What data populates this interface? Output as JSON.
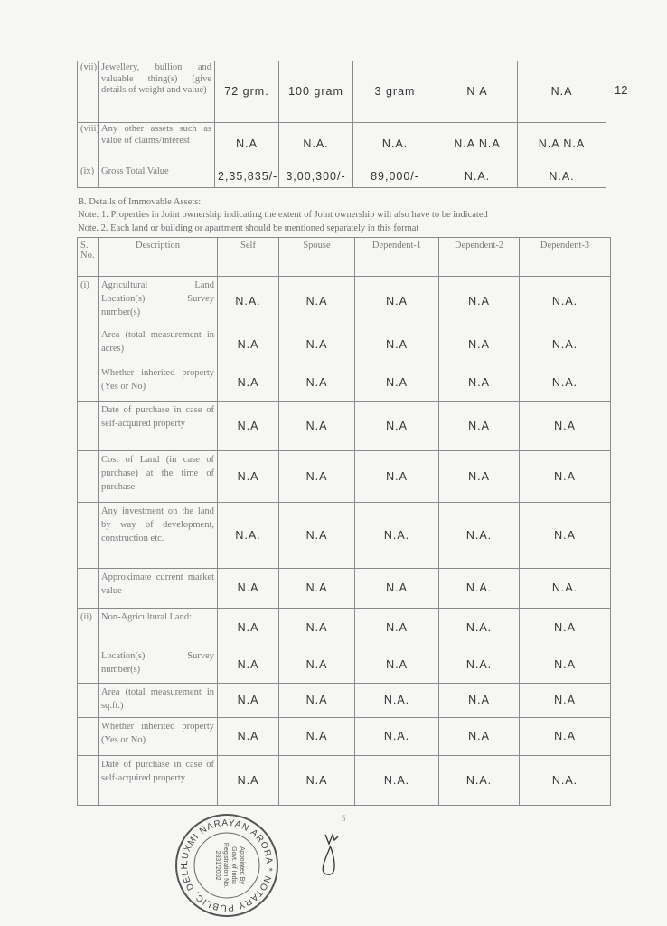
{
  "movable_continued": {
    "rows": [
      {
        "sno": "(vii)",
        "desc": "Jewellery, bullion and valuable thing(s) (give details of weight and value)",
        "values": [
          "72 grm.",
          "100 gram",
          "3 gram",
          "N A",
          "N.A"
        ]
      },
      {
        "sno": "(viii)",
        "desc": "Any other assets such as value of claims/interest",
        "values": [
          "N.A",
          "N.A.",
          "N.A.",
          "N.A  N.A",
          "N.A  N.A"
        ]
      },
      {
        "sno": "(ix)",
        "desc": "Gross Total Value",
        "values": [
          "2,35,835/-",
          "3,00,300/-",
          "89,000/-",
          "N.A.",
          "N.A."
        ]
      }
    ]
  },
  "margin_note": "12",
  "section_b": {
    "title": "B. Details of Immovable Assets:",
    "note1": "Note: 1.   Properties in Joint ownership indicating the extent of Joint ownership will also have to be indicated",
    "note2": "Note. 2.   Each land or building or apartment should be mentioned separately in this format",
    "headers": [
      "S. No.",
      "Description",
      "Self",
      "Spouse",
      "Dependent-1",
      "Dependent-2",
      "Dependent-3"
    ],
    "rows": [
      {
        "sno": "(i)",
        "desc": "Agricultural Land Location(s) Survey number(s)",
        "values": [
          "N.A.",
          "N.A",
          "N.A",
          "N.A",
          "N.A."
        ]
      },
      {
        "sno": "",
        "desc": "Area (total measurement in acres)",
        "values": [
          "N.A",
          "N.A",
          "N.A",
          "N.A",
          "N.A."
        ]
      },
      {
        "sno": "",
        "desc": "Whether inherited property (Yes or No)",
        "values": [
          "N.A",
          "N.A",
          "N.A",
          "N.A",
          "N.A."
        ]
      },
      {
        "sno": "",
        "desc": "Date of purchase in case of self-acquired property",
        "values": [
          "N.A",
          "N.A",
          "N.A",
          "N.A",
          "N.A"
        ]
      },
      {
        "sno": "",
        "desc": "Cost of Land (in case of purchase) at the time of purchase",
        "values": [
          "N.A",
          "N.A",
          "N.A",
          "N.A",
          "N.A"
        ]
      },
      {
        "sno": "",
        "desc": "Any investment on the land by way of development, construction etc.",
        "values": [
          "N.A.",
          "N.A",
          "N.A.",
          "N.A.",
          "N.A"
        ]
      },
      {
        "sno": "",
        "desc": "Approximate current market value",
        "values": [
          "N.A",
          "N.A",
          "N.A",
          "N.A.",
          "N.A."
        ]
      },
      {
        "sno": "(ii)",
        "desc": "Non-Agricultural Land:",
        "values": [
          "N.A",
          "N.A",
          "N.A",
          "N.A.",
          "N.A"
        ]
      },
      {
        "sno": "",
        "desc": "Location(s) Survey number(s)",
        "values": [
          "N.A",
          "N.A",
          "N.A",
          "N.A.",
          "N.A"
        ]
      },
      {
        "sno": "",
        "desc": "Area (total measurement in sq.ft.)",
        "values": [
          "N.A",
          "N.A",
          "N.A.",
          "N.A",
          "N.A"
        ]
      },
      {
        "sno": "",
        "desc": "Whether inherited property (Yes or No)",
        "values": [
          "N.A",
          "N.A",
          "N.A.",
          "N.A",
          "N.A"
        ]
      },
      {
        "sno": "",
        "desc": "Date of purchase in case of self-acquired property",
        "values": [
          "N.A",
          "N.A",
          "N.A.",
          "N.A.",
          "N.A."
        ]
      }
    ]
  },
  "page_number": "5",
  "stamp": {
    "text": "LUXMI NARAYAN ARORA * NOTARY PUBLIC, DELHI *",
    "inner": [
      "Appointed By",
      "Govt. of India",
      "Registration No.",
      "2831/2002"
    ]
  }
}
